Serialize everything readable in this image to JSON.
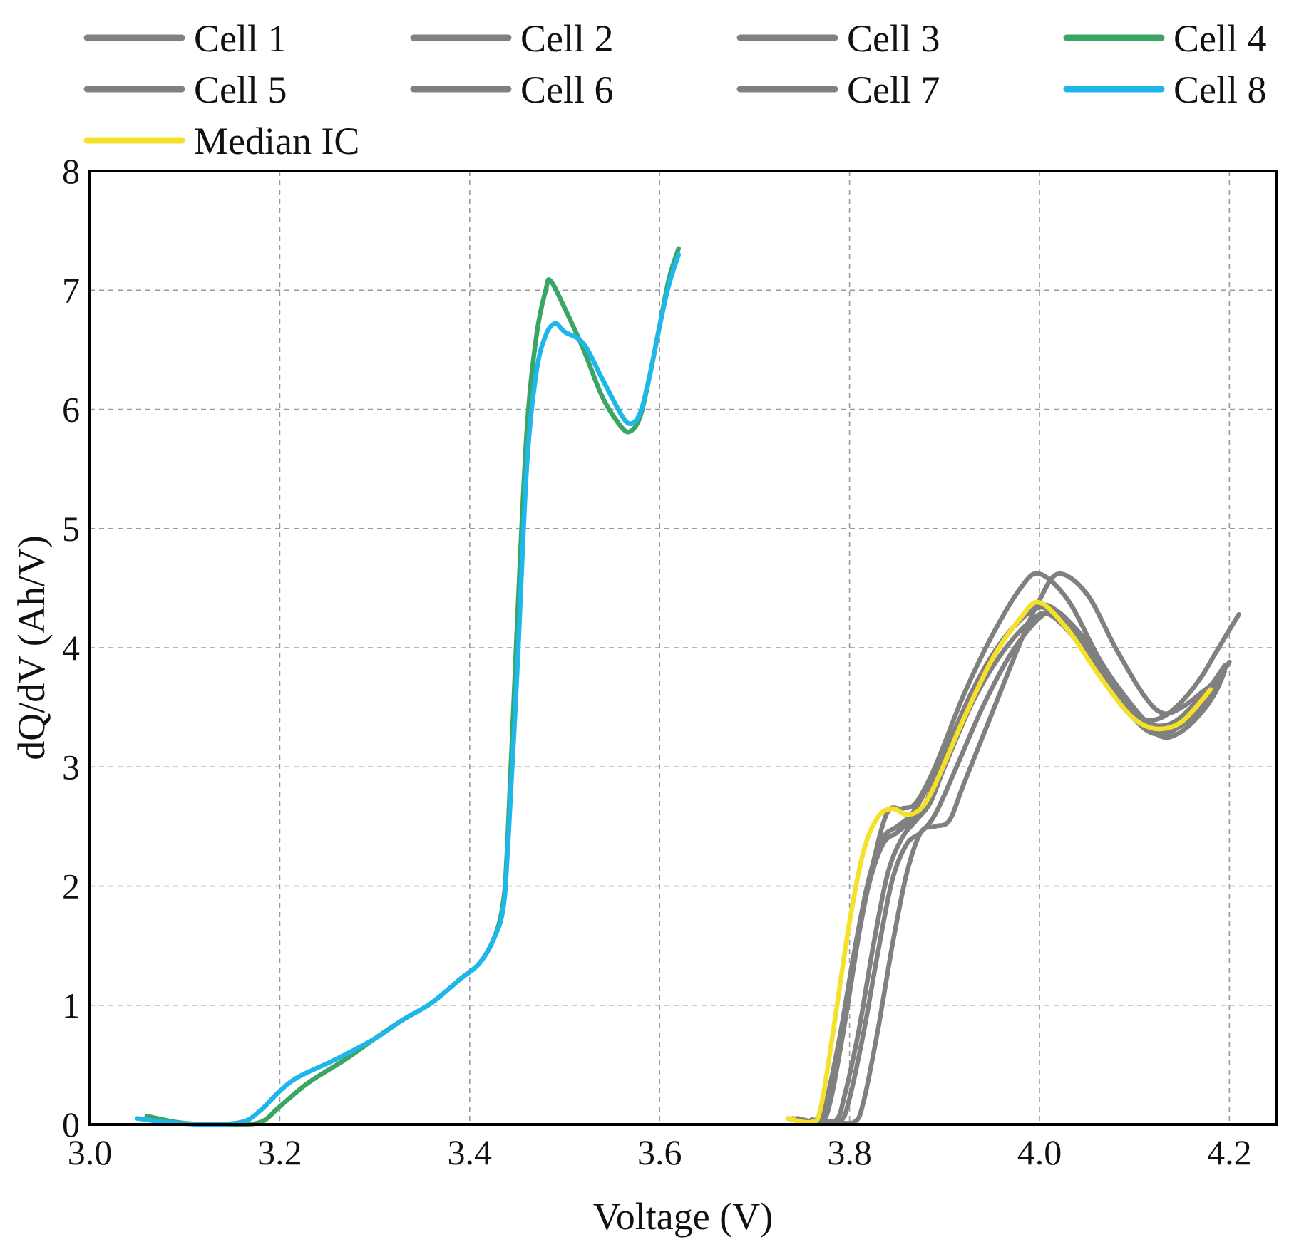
{
  "chart_data": {
    "type": "line",
    "title": "",
    "xlabel": "Voltage (V)",
    "ylabel": "dQ/dV (Ah/V)",
    "xlim": [
      3.0,
      4.25
    ],
    "ylim": [
      0,
      8
    ],
    "xticks": [
      "3.0",
      "3.2",
      "3.4",
      "3.6",
      "3.8",
      "4.0",
      "4.2"
    ],
    "xtick_values": [
      3.0,
      3.2,
      3.4,
      3.6,
      3.8,
      4.0,
      4.2
    ],
    "yticks": [
      "0",
      "1",
      "2",
      "3",
      "4",
      "5",
      "6",
      "7",
      "8"
    ],
    "ytick_values": [
      0,
      1,
      2,
      3,
      4,
      5,
      6,
      7,
      8
    ],
    "grid": true,
    "legend_position": "top",
    "series": [
      {
        "name": "Cell 1",
        "color": "#808080",
        "segments": [
          [
            [
              3.735,
              0.05
            ],
            [
              3.76,
              0.02
            ],
            [
              3.775,
              0.15
            ],
            [
              3.79,
              0.7
            ],
            [
              3.805,
              1.4
            ],
            [
              3.82,
              2.0
            ],
            [
              3.835,
              2.35
            ],
            [
              3.85,
              2.45
            ],
            [
              3.865,
              2.55
            ],
            [
              3.88,
              2.7
            ],
            [
              3.9,
              3.1
            ],
            [
              3.93,
              3.65
            ],
            [
              3.96,
              4.05
            ],
            [
              3.99,
              4.3
            ],
            [
              4.01,
              4.32
            ],
            [
              4.04,
              4.1
            ],
            [
              4.07,
              3.75
            ],
            [
              4.1,
              3.45
            ],
            [
              4.12,
              3.35
            ],
            [
              4.14,
              3.37
            ],
            [
              4.16,
              3.5
            ],
            [
              4.18,
              3.68
            ],
            [
              4.195,
              3.85
            ]
          ]
        ]
      },
      {
        "name": "Cell 2",
        "color": "#808080",
        "segments": [
          [
            [
              3.76,
              0.04
            ],
            [
              3.785,
              0.03
            ],
            [
              3.795,
              0.25
            ],
            [
              3.81,
              0.8
            ],
            [
              3.825,
              1.5
            ],
            [
              3.84,
              2.1
            ],
            [
              3.855,
              2.4
            ],
            [
              3.87,
              2.55
            ],
            [
              3.885,
              2.7
            ],
            [
              3.9,
              3.0
            ],
            [
              3.93,
              3.55
            ],
            [
              3.96,
              3.95
            ],
            [
              3.99,
              4.22
            ],
            [
              4.01,
              4.28
            ],
            [
              4.04,
              4.05
            ],
            [
              4.07,
              3.7
            ],
            [
              4.1,
              3.4
            ],
            [
              4.12,
              3.28
            ],
            [
              4.14,
              3.3
            ],
            [
              4.16,
              3.45
            ],
            [
              4.18,
              3.62
            ],
            [
              4.19,
              3.78
            ]
          ]
        ]
      },
      {
        "name": "Cell 3",
        "color": "#808080",
        "segments": [
          [
            [
              3.745,
              0.05
            ],
            [
              3.77,
              0.03
            ],
            [
              3.78,
              0.2
            ],
            [
              3.795,
              0.85
            ],
            [
              3.81,
              1.6
            ],
            [
              3.825,
              2.2
            ],
            [
              3.84,
              2.62
            ],
            [
              3.855,
              2.65
            ],
            [
              3.87,
              2.7
            ],
            [
              3.89,
              3.0
            ],
            [
              3.92,
              3.6
            ],
            [
              3.95,
              4.1
            ],
            [
              3.98,
              4.5
            ],
            [
              4.0,
              4.62
            ],
            [
              4.03,
              4.4
            ],
            [
              4.06,
              3.95
            ],
            [
              4.09,
              3.55
            ],
            [
              4.11,
              3.4
            ],
            [
              4.13,
              3.42
            ],
            [
              4.15,
              3.55
            ],
            [
              4.17,
              3.75
            ],
            [
              4.185,
              3.95
            ],
            [
              4.2,
              4.15
            ],
            [
              4.21,
              4.28
            ]
          ]
        ]
      },
      {
        "name": "Cell 4",
        "color": "#3aa564",
        "segments": [
          [
            [
              3.06,
              0.07
            ],
            [
              3.1,
              0.01
            ],
            [
              3.15,
              0.0
            ],
            [
              3.18,
              0.02
            ],
            [
              3.2,
              0.15
            ],
            [
              3.23,
              0.35
            ],
            [
              3.27,
              0.55
            ],
            [
              3.3,
              0.72
            ],
            [
              3.33,
              0.88
            ],
            [
              3.36,
              1.02
            ],
            [
              3.39,
              1.22
            ],
            [
              3.41,
              1.35
            ],
            [
              3.425,
              1.55
            ],
            [
              3.435,
              1.85
            ],
            [
              3.44,
              2.4
            ],
            [
              3.45,
              4.2
            ],
            [
              3.46,
              5.8
            ],
            [
              3.47,
              6.6
            ],
            [
              3.48,
              7.0
            ],
            [
              3.485,
              7.08
            ],
            [
              3.5,
              6.85
            ],
            [
              3.52,
              6.5
            ],
            [
              3.54,
              6.1
            ],
            [
              3.56,
              5.85
            ],
            [
              3.57,
              5.82
            ],
            [
              3.58,
              5.95
            ],
            [
              3.59,
              6.3
            ],
            [
              3.6,
              6.7
            ],
            [
              3.61,
              7.1
            ],
            [
              3.62,
              7.35
            ]
          ]
        ]
      },
      {
        "name": "Cell 5",
        "color": "#808080",
        "segments": [
          [
            [
              3.78,
              0.03
            ],
            [
              3.805,
              0.02
            ],
            [
              3.815,
              0.2
            ],
            [
              3.83,
              0.8
            ],
            [
              3.845,
              1.5
            ],
            [
              3.86,
              2.1
            ],
            [
              3.875,
              2.45
            ],
            [
              3.89,
              2.5
            ],
            [
              3.905,
              2.55
            ],
            [
              3.92,
              2.85
            ],
            [
              3.95,
              3.45
            ],
            [
              3.98,
              4.05
            ],
            [
              4.0,
              4.4
            ],
            [
              4.02,
              4.62
            ],
            [
              4.05,
              4.45
            ],
            [
              4.08,
              4.0
            ],
            [
              4.11,
              3.6
            ],
            [
              4.13,
              3.45
            ],
            [
              4.15,
              3.5
            ],
            [
              4.17,
              3.62
            ],
            [
              4.185,
              3.72
            ],
            [
              4.195,
              3.85
            ]
          ]
        ]
      },
      {
        "name": "Cell 6",
        "color": "#808080",
        "segments": [
          [
            [
              3.765,
              0.04
            ],
            [
              3.79,
              0.03
            ],
            [
              3.8,
              0.22
            ],
            [
              3.815,
              0.78
            ],
            [
              3.83,
              1.45
            ],
            [
              3.845,
              2.05
            ],
            [
              3.86,
              2.35
            ],
            [
              3.875,
              2.45
            ],
            [
              3.89,
              2.6
            ],
            [
              3.91,
              2.95
            ],
            [
              3.94,
              3.5
            ],
            [
              3.97,
              3.95
            ],
            [
              4.0,
              4.25
            ],
            [
              4.02,
              4.3
            ],
            [
              4.05,
              4.02
            ],
            [
              4.08,
              3.65
            ],
            [
              4.11,
              3.38
            ],
            [
              4.13,
              3.25
            ],
            [
              4.15,
              3.3
            ],
            [
              4.17,
              3.45
            ],
            [
              4.185,
              3.62
            ],
            [
              4.195,
              3.8
            ]
          ]
        ]
      },
      {
        "name": "Cell 7",
        "color": "#808080",
        "segments": [
          [
            [
              3.74,
              0.05
            ],
            [
              3.765,
              0.02
            ],
            [
              3.775,
              0.18
            ],
            [
              3.79,
              0.75
            ],
            [
              3.805,
              1.45
            ],
            [
              3.82,
              2.05
            ],
            [
              3.835,
              2.4
            ],
            [
              3.85,
              2.5
            ],
            [
              3.865,
              2.6
            ],
            [
              3.88,
              2.8
            ],
            [
              3.91,
              3.3
            ],
            [
              3.94,
              3.8
            ],
            [
              3.97,
              4.15
            ],
            [
              4.0,
              4.35
            ],
            [
              4.02,
              4.3
            ],
            [
              4.05,
              4.05
            ],
            [
              4.08,
              3.7
            ],
            [
              4.11,
              3.4
            ],
            [
              4.13,
              3.3
            ],
            [
              4.15,
              3.35
            ],
            [
              4.17,
              3.5
            ],
            [
              4.185,
              3.7
            ],
            [
              4.2,
              3.88
            ]
          ]
        ]
      },
      {
        "name": "Cell 8",
        "color": "#1fb6ea",
        "segments": [
          [
            [
              3.05,
              0.05
            ],
            [
              3.08,
              0.02
            ],
            [
              3.12,
              0.0
            ],
            [
              3.16,
              0.02
            ],
            [
              3.18,
              0.12
            ],
            [
              3.2,
              0.28
            ],
            [
              3.22,
              0.4
            ],
            [
              3.26,
              0.55
            ],
            [
              3.3,
              0.72
            ],
            [
              3.33,
              0.88
            ],
            [
              3.36,
              1.02
            ],
            [
              3.39,
              1.22
            ],
            [
              3.41,
              1.35
            ],
            [
              3.425,
              1.55
            ],
            [
              3.435,
              1.8
            ],
            [
              3.44,
              2.3
            ],
            [
              3.45,
              3.8
            ],
            [
              3.46,
              5.5
            ],
            [
              3.47,
              6.3
            ],
            [
              3.48,
              6.62
            ],
            [
              3.49,
              6.72
            ],
            [
              3.5,
              6.65
            ],
            [
              3.52,
              6.55
            ],
            [
              3.54,
              6.25
            ],
            [
              3.56,
              5.95
            ],
            [
              3.57,
              5.88
            ],
            [
              3.58,
              5.98
            ],
            [
              3.59,
              6.3
            ],
            [
              3.6,
              6.7
            ],
            [
              3.61,
              7.05
            ],
            [
              3.62,
              7.3
            ]
          ]
        ]
      },
      {
        "name": "Median IC",
        "color": "#f5e02a",
        "segments": [
          [
            [
              3.735,
              0.05
            ],
            [
              3.76,
              0.02
            ],
            [
              3.77,
              0.15
            ],
            [
              3.785,
              0.9
            ],
            [
              3.8,
              1.7
            ],
            [
              3.815,
              2.3
            ],
            [
              3.83,
              2.58
            ],
            [
              3.845,
              2.65
            ],
            [
              3.86,
              2.6
            ],
            [
              3.875,
              2.65
            ],
            [
              3.89,
              2.85
            ],
            [
              3.92,
              3.4
            ],
            [
              3.95,
              3.9
            ],
            [
              3.98,
              4.25
            ],
            [
              4.0,
              4.38
            ],
            [
              4.03,
              4.15
            ],
            [
              4.06,
              3.8
            ],
            [
              4.09,
              3.48
            ],
            [
              4.11,
              3.35
            ],
            [
              4.13,
              3.32
            ],
            [
              4.15,
              3.38
            ],
            [
              4.17,
              3.55
            ],
            [
              4.18,
              3.65
            ]
          ]
        ]
      }
    ]
  }
}
